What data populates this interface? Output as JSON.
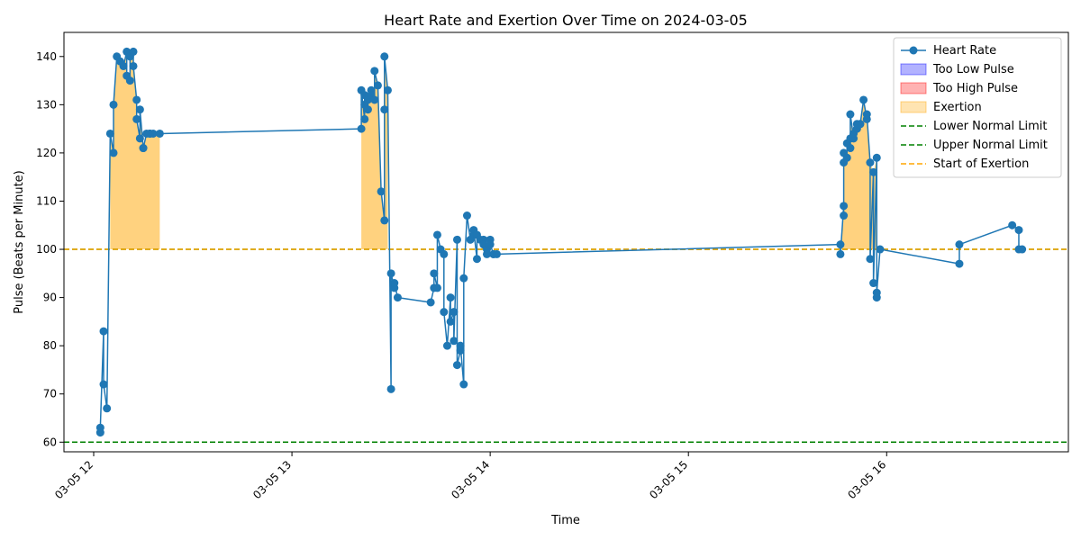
{
  "chart_data": {
    "type": "line",
    "title": "Heart Rate and Exertion Over Time on 2024-03-05",
    "xlabel": "Time",
    "ylabel": "Pulse (Beats per Minute)",
    "x_tick_labels": [
      "03-05 12",
      "03-05 13",
      "03-05 14",
      "03-05 15",
      "03-05 16"
    ],
    "y_tick_labels": [
      "60",
      "70",
      "80",
      "90",
      "100",
      "110",
      "120",
      "130",
      "140"
    ],
    "xlim": [
      "2024-03-05 11:51",
      "2024-03-05 16:55"
    ],
    "ylim": [
      58,
      145
    ],
    "grid": false,
    "legend_position": "top-right",
    "legend": [
      "Heart Rate",
      "Too Low Pulse",
      "Too High Pulse",
      "Exertion",
      "Lower Normal Limit",
      "Upper Normal Limit",
      "Start of Exertion"
    ],
    "colors": {
      "heart_rate": "#1f77b4",
      "too_low": "#0000ff",
      "too_high": "#ff0000",
      "exertion": "#ffa500",
      "normal_limit": "#008000",
      "start_exertion": "#ffa500"
    },
    "reference_lines": {
      "lower_normal_limit": 60,
      "upper_normal_limit": 100,
      "start_of_exertion": 100
    },
    "series": [
      {
        "name": "Heart Rate",
        "x": [
          "12:02",
          "12:02",
          "12:03",
          "12:03",
          "12:04",
          "12:05",
          "12:06",
          "12:06",
          "12:07",
          "12:08",
          "12:09",
          "12:10",
          "12:10",
          "12:11",
          "12:11",
          "12:12",
          "12:12",
          "12:13",
          "12:13",
          "12:14",
          "12:14",
          "12:15",
          "12:15",
          "12:16",
          "12:17",
          "12:17",
          "12:17",
          "12:18",
          "12:20",
          "13:21",
          "13:21",
          "13:22",
          "13:22",
          "13:22",
          "13:23",
          "13:23",
          "13:24",
          "13:24",
          "13:25",
          "13:25",
          "13:26",
          "13:27",
          "13:28",
          "13:28",
          "13:28",
          "13:29",
          "13:30",
          "13:30",
          "13:31",
          "13:31",
          "13:32",
          "13:42",
          "13:43",
          "13:43",
          "13:44",
          "13:44",
          "13:45",
          "13:46",
          "13:46",
          "13:47",
          "13:48",
          "13:48",
          "13:49",
          "13:49",
          "13:50",
          "13:50",
          "13:51",
          "13:51",
          "13:52",
          "13:52",
          "13:53",
          "13:54",
          "13:55",
          "13:55",
          "13:56",
          "13:56",
          "13:57",
          "13:58",
          "13:58",
          "13:59",
          "13:59",
          "14:00",
          "14:00",
          "14:01",
          "14:01",
          "14:02",
          "15:46",
          "15:46",
          "15:47",
          "15:47",
          "15:47",
          "15:47",
          "15:48",
          "15:48",
          "15:49",
          "15:49",
          "15:49",
          "15:50",
          "15:50",
          "15:51",
          "15:51",
          "15:51",
          "15:52",
          "15:52",
          "15:53",
          "15:54",
          "15:54",
          "15:55",
          "15:55",
          "15:56",
          "15:56",
          "15:57",
          "15:57",
          "15:57",
          "15:58",
          "16:22",
          "16:22",
          "16:38",
          "16:40",
          "16:40",
          "16:41"
        ],
        "y": [
          62,
          63,
          83,
          72,
          67,
          124,
          120,
          130,
          140,
          139,
          138,
          141,
          136,
          135,
          140,
          141,
          138,
          131,
          127,
          123,
          129,
          121,
          121,
          124,
          124,
          124,
          124,
          124,
          124,
          125,
          133,
          127,
          130,
          132,
          129,
          131,
          133,
          132,
          131,
          137,
          134,
          112,
          106,
          129,
          140,
          133,
          71,
          95,
          92,
          93,
          90,
          89,
          92,
          95,
          92,
          103,
          100,
          99,
          87,
          80,
          90,
          85,
          87,
          81,
          102,
          76,
          79,
          80,
          72,
          94,
          107,
          102,
          103,
          104,
          98,
          103,
          102,
          102,
          101,
          99,
          100,
          102,
          101,
          99,
          99,
          99,
          101,
          99,
          109,
          107,
          120,
          118,
          119,
          122,
          121,
          123,
          128,
          123,
          124,
          125,
          125,
          126,
          126,
          126,
          131,
          127,
          128,
          118,
          98,
          116,
          93,
          119,
          90,
          91,
          100,
          97,
          101,
          105,
          104,
          100,
          100
        ]
      }
    ],
    "exertion_regions": [
      {
        "start": "12:05",
        "end": "12:20"
      },
      {
        "start": "13:20",
        "end": "13:32"
      },
      {
        "start": "15:46",
        "end": "15:57"
      }
    ]
  }
}
